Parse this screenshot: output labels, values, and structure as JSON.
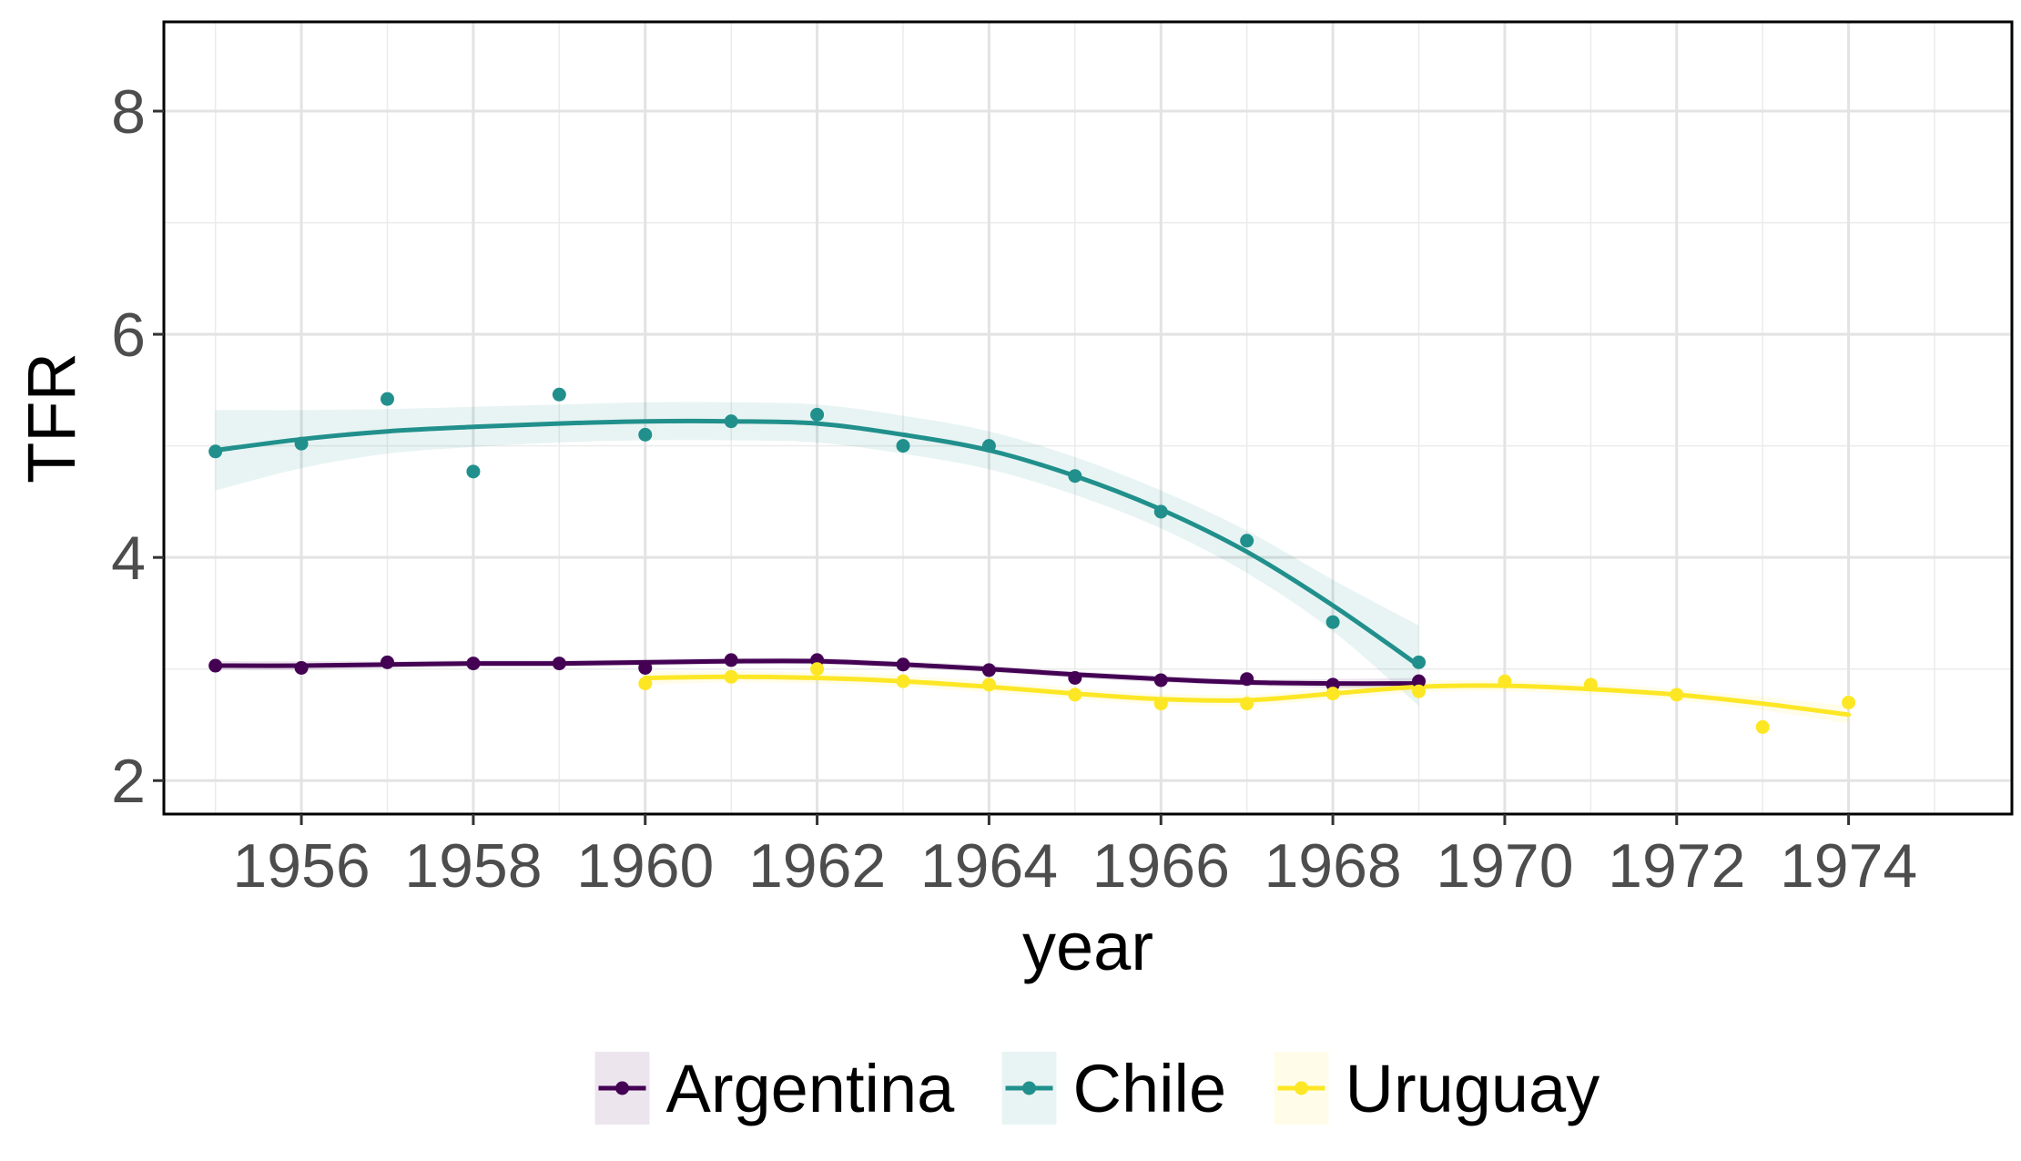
{
  "chart_data": {
    "type": "line",
    "xlabel": "year",
    "ylabel": "TFR",
    "xlim": [
      1954.4,
      1975.9
    ],
    "ylim": [
      1.7,
      8.8
    ],
    "x_ticks": [
      1956,
      1958,
      1960,
      1962,
      1964,
      1966,
      1968,
      1970,
      1972,
      1974
    ],
    "x_minor_ticks": [
      1955,
      1957,
      1959,
      1961,
      1963,
      1965,
      1967,
      1969,
      1971,
      1973,
      1975
    ],
    "y_ticks": [
      2,
      4,
      6,
      8
    ],
    "y_minor_ticks": [
      3,
      5,
      7
    ],
    "grid": true,
    "legend": "bottom",
    "series": [
      {
        "name": "Argentina",
        "color": "#440154",
        "points": [
          [
            1955,
            3.03
          ],
          [
            1956,
            3.01
          ],
          [
            1957,
            3.06
          ],
          [
            1958,
            3.05
          ],
          [
            1959,
            3.05
          ],
          [
            1960,
            3.01
          ],
          [
            1961,
            3.08
          ],
          [
            1962,
            3.08
          ],
          [
            1963,
            3.04
          ],
          [
            1964,
            2.99
          ],
          [
            1965,
            2.92
          ],
          [
            1966,
            2.9
          ],
          [
            1967,
            2.91
          ],
          [
            1968,
            2.86
          ],
          [
            1969,
            2.89
          ]
        ],
        "smooth": [
          [
            1955,
            3.03
          ],
          [
            1956,
            3.03
          ],
          [
            1957,
            3.04
          ],
          [
            1958,
            3.05
          ],
          [
            1959,
            3.05
          ],
          [
            1960,
            3.06
          ],
          [
            1961,
            3.07
          ],
          [
            1962,
            3.07
          ],
          [
            1963,
            3.04
          ],
          [
            1964,
            3.0
          ],
          [
            1965,
            2.95
          ],
          [
            1966,
            2.91
          ],
          [
            1967,
            2.88
          ],
          [
            1968,
            2.87
          ],
          [
            1969,
            2.87
          ]
        ],
        "band": [
          0.04,
          0.04,
          0.03,
          0.03,
          0.03,
          0.03,
          0.03,
          0.03,
          0.03,
          0.03,
          0.03,
          0.03,
          0.03,
          0.04,
          0.05
        ]
      },
      {
        "name": "Chile",
        "color": "#21908C",
        "points": [
          [
            1955,
            4.95
          ],
          [
            1956,
            5.02
          ],
          [
            1957,
            5.42
          ],
          [
            1958,
            4.77
          ],
          [
            1959,
            5.46
          ],
          [
            1960,
            5.1
          ],
          [
            1961,
            5.22
          ],
          [
            1962,
            5.28
          ],
          [
            1963,
            5.0
          ],
          [
            1964,
            5.0
          ],
          [
            1965,
            4.73
          ],
          [
            1966,
            4.41
          ],
          [
            1967,
            4.15
          ],
          [
            1968,
            3.42
          ],
          [
            1969,
            3.06
          ]
        ],
        "smooth": [
          [
            1955,
            4.96
          ],
          [
            1956,
            5.06
          ],
          [
            1957,
            5.13
          ],
          [
            1958,
            5.17
          ],
          [
            1959,
            5.2
          ],
          [
            1960,
            5.22
          ],
          [
            1961,
            5.22
          ],
          [
            1962,
            5.2
          ],
          [
            1963,
            5.1
          ],
          [
            1964,
            4.96
          ],
          [
            1965,
            4.73
          ],
          [
            1966,
            4.43
          ],
          [
            1967,
            4.05
          ],
          [
            1968,
            3.57
          ],
          [
            1969,
            3.03
          ]
        ],
        "band": [
          0.36,
          0.26,
          0.2,
          0.18,
          0.17,
          0.17,
          0.17,
          0.17,
          0.17,
          0.17,
          0.17,
          0.17,
          0.19,
          0.23,
          0.36
        ]
      },
      {
        "name": "Uruguay",
        "color": "#FDE725",
        "points": [
          [
            1960,
            2.87
          ],
          [
            1961,
            2.93
          ],
          [
            1962,
            3.0
          ],
          [
            1963,
            2.89
          ],
          [
            1964,
            2.86
          ],
          [
            1965,
            2.77
          ],
          [
            1966,
            2.69
          ],
          [
            1967,
            2.69
          ],
          [
            1968,
            2.78
          ],
          [
            1969,
            2.8
          ],
          [
            1970,
            2.89
          ],
          [
            1971,
            2.86
          ],
          [
            1972,
            2.77
          ],
          [
            1973,
            2.48
          ],
          [
            1974,
            2.7
          ]
        ],
        "smooth": [
          [
            1960,
            2.92
          ],
          [
            1961,
            2.93
          ],
          [
            1962,
            2.92
          ],
          [
            1963,
            2.89
          ],
          [
            1964,
            2.84
          ],
          [
            1965,
            2.78
          ],
          [
            1966,
            2.73
          ],
          [
            1967,
            2.72
          ],
          [
            1968,
            2.78
          ],
          [
            1969,
            2.84
          ],
          [
            1970,
            2.85
          ],
          [
            1971,
            2.82
          ],
          [
            1972,
            2.77
          ],
          [
            1973,
            2.69
          ],
          [
            1974,
            2.59
          ]
        ],
        "band": [
          0.06,
          0.05,
          0.05,
          0.05,
          0.05,
          0.05,
          0.05,
          0.05,
          0.05,
          0.05,
          0.05,
          0.05,
          0.05,
          0.06,
          0.08
        ]
      }
    ]
  }
}
